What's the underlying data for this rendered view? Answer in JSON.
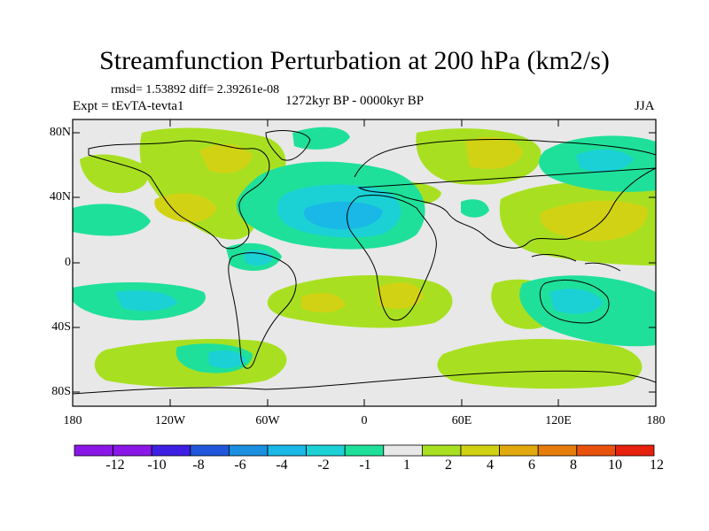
{
  "title": "Streamfunction Perturbation at 200 hPa (km2/s)",
  "stats_line": "rmsd= 1.53892 diff= 2.39261e-08",
  "experiment": "Expt = tEvTA-tevta1",
  "period": "1272kyr BP - 0000kyr BP",
  "season": "JJA",
  "axes": {
    "y_ticks": [
      "80N",
      "40N",
      "0",
      "40S",
      "80S"
    ],
    "x_ticks": [
      "180",
      "120W",
      "60W",
      "0",
      "60E",
      "120E",
      "180"
    ]
  },
  "colorbar": {
    "labels": [
      "-12",
      "-10",
      "-8",
      "-6",
      "-4",
      "-2",
      "-1",
      "1",
      "2",
      "4",
      "6",
      "8",
      "10",
      "12"
    ],
    "colors": [
      "#8a17e8",
      "#3d1ee3",
      "#1f56dc",
      "#1b8fe0",
      "#19b8e6",
      "#1bd1d6",
      "#1fe09a",
      "#e8e8e8",
      "#a8e021",
      "#d2d214",
      "#e2a90e",
      "#e67c0c",
      "#e8520d",
      "#e8200e"
    ]
  },
  "colors": {
    "background": "#e8e8e8",
    "neg1": "#1fe09a",
    "neg2": "#1bd1d6",
    "neg3": "#19b8e6",
    "pos1": "#a8e021",
    "pos2": "#d2d214"
  }
}
